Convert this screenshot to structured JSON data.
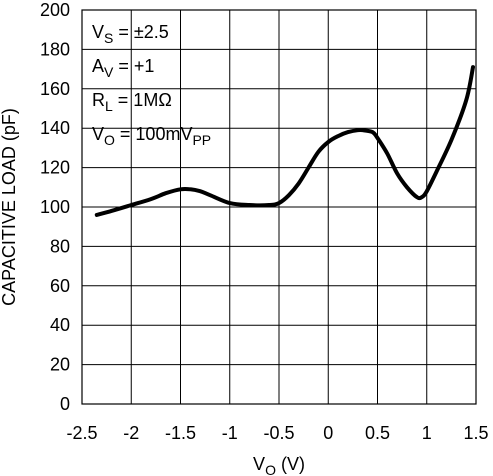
{
  "chart_data": {
    "type": "line",
    "title": "",
    "xlabel": "V",
    "xlabel_sub": "O",
    "xlabel_unit": " (V)",
    "ylabel": "CAPACITIVE LOAD (pF)",
    "xlim": [
      -2.5,
      1.5
    ],
    "ylim": [
      0,
      200
    ],
    "x_ticks": [
      -2.5,
      -2,
      -1.5,
      -1,
      -0.5,
      0,
      0.5,
      1,
      1.5
    ],
    "x_tick_labels": [
      "-2.5",
      "-2",
      "-1.5",
      "-1",
      "-0.5",
      "0",
      "0.5",
      "1",
      "1.5"
    ],
    "y_ticks": [
      0,
      20,
      40,
      60,
      80,
      100,
      120,
      140,
      160,
      180,
      200
    ],
    "y_tick_labels": [
      "0",
      "20",
      "40",
      "60",
      "80",
      "100",
      "120",
      "140",
      "160",
      "180",
      "200"
    ],
    "grid": true,
    "annotations": [
      {
        "main": "V",
        "sub": "S",
        "rest": " = ±2.5",
        "sub2": ""
      },
      {
        "main": "A",
        "sub": "V",
        "rest": " = +1",
        "sub2": ""
      },
      {
        "main": "R",
        "sub": "L",
        "rest": " = 1MΩ",
        "sub2": ""
      },
      {
        "main": "V",
        "sub": "O",
        "rest": " = 100mV",
        "sub2": "PP"
      }
    ],
    "series": [
      {
        "x": [
          -2.35,
          -2.2,
          -2.0,
          -1.8,
          -1.65,
          -1.5,
          -1.4,
          -1.3,
          -1.2,
          -1.0,
          -0.8,
          -0.6,
          -0.5,
          -0.4,
          -0.3,
          -0.2,
          -0.1,
          0.0,
          0.1,
          0.2,
          0.3,
          0.35,
          0.45,
          0.5,
          0.6,
          0.7,
          0.8,
          0.9,
          0.95,
          1.0,
          1.1,
          1.25,
          1.4,
          1.47
        ],
        "y": [
          96,
          98,
          101,
          104,
          107,
          109,
          109,
          108,
          106,
          102,
          101,
          101,
          102,
          106,
          112,
          120,
          128,
          133,
          136,
          138,
          139,
          139,
          138,
          135,
          127,
          117,
          110,
          105,
          105,
          108,
          118,
          134,
          154,
          171
        ]
      }
    ]
  }
}
